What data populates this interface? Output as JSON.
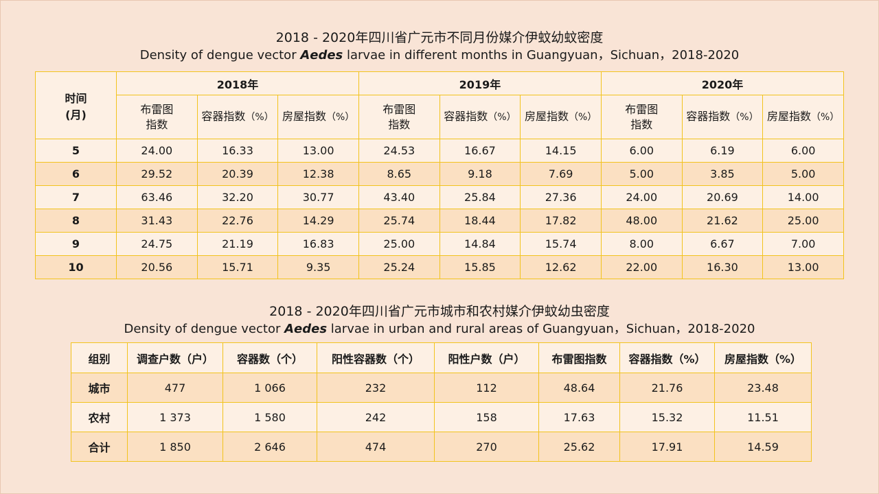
{
  "title1": {
    "cn": "2018 - 2020年四川省广元市不同月份媒介伊蚊幼蚊密度",
    "en_pre": "Density of dengue vector ",
    "en_italic": "Aedes",
    "en_post": " larvae in different months in Guangyuan，Sichuan，2018-2020"
  },
  "table1": {
    "time_header_line1": "时间",
    "time_header_line2": "(月)",
    "years": [
      "2018年",
      "2019年",
      "2020年"
    ],
    "sub_headers": {
      "bi_line1": "布雷图",
      "bi_line2": "指数",
      "ci": "容器指数",
      "hi": "房屋指数",
      "pct": "（%）"
    },
    "rows": [
      {
        "month": "5",
        "v": [
          "24.00",
          "16.33",
          "13.00",
          "24.53",
          "16.67",
          "14.15",
          "6.00",
          "6.19",
          "6.00"
        ]
      },
      {
        "month": "6",
        "v": [
          "29.52",
          "20.39",
          "12.38",
          "8.65",
          "9.18",
          "7.69",
          "5.00",
          "3.85",
          "5.00"
        ]
      },
      {
        "month": "7",
        "v": [
          "63.46",
          "32.20",
          "30.77",
          "43.40",
          "25.84",
          "27.36",
          "24.00",
          "20.69",
          "14.00"
        ]
      },
      {
        "month": "8",
        "v": [
          "31.43",
          "22.76",
          "14.29",
          "25.74",
          "18.44",
          "17.82",
          "48.00",
          "21.62",
          "25.00"
        ]
      },
      {
        "month": "9",
        "v": [
          "24.75",
          "21.19",
          "16.83",
          "25.00",
          "14.84",
          "15.74",
          "8.00",
          "6.67",
          "7.00"
        ]
      },
      {
        "month": "10",
        "v": [
          "20.56",
          "15.71",
          "9.35",
          "25.24",
          "15.85",
          "12.62",
          "22.00",
          "16.30",
          "13.00"
        ]
      }
    ]
  },
  "title2": {
    "cn": "2018 - 2020年四川省广元市城市和农村媒介伊蚊幼虫密度",
    "en_pre": "Density of dengue vector ",
    "en_italic": "Aedes",
    "en_post": " larvae in urban and rural areas of Guangyuan，Sichuan，2018-2020"
  },
  "table2": {
    "headers": [
      "组别",
      "调查户数（户）",
      "容器数（个）",
      "阳性容器数（个）",
      "阳性户数（户）",
      "布雷图指数",
      "容器指数（%）",
      "房屋指数（%）"
    ],
    "rows": [
      [
        "城市",
        "477",
        "1 066",
        "232",
        "112",
        "48.64",
        "21.76",
        "23.48"
      ],
      [
        "农村",
        "1 373",
        "1 580",
        "242",
        "158",
        "17.63",
        "15.32",
        "11.51"
      ],
      [
        "合计",
        "1 850",
        "2 646",
        "474",
        "270",
        "25.62",
        "17.91",
        "14.59"
      ]
    ]
  }
}
